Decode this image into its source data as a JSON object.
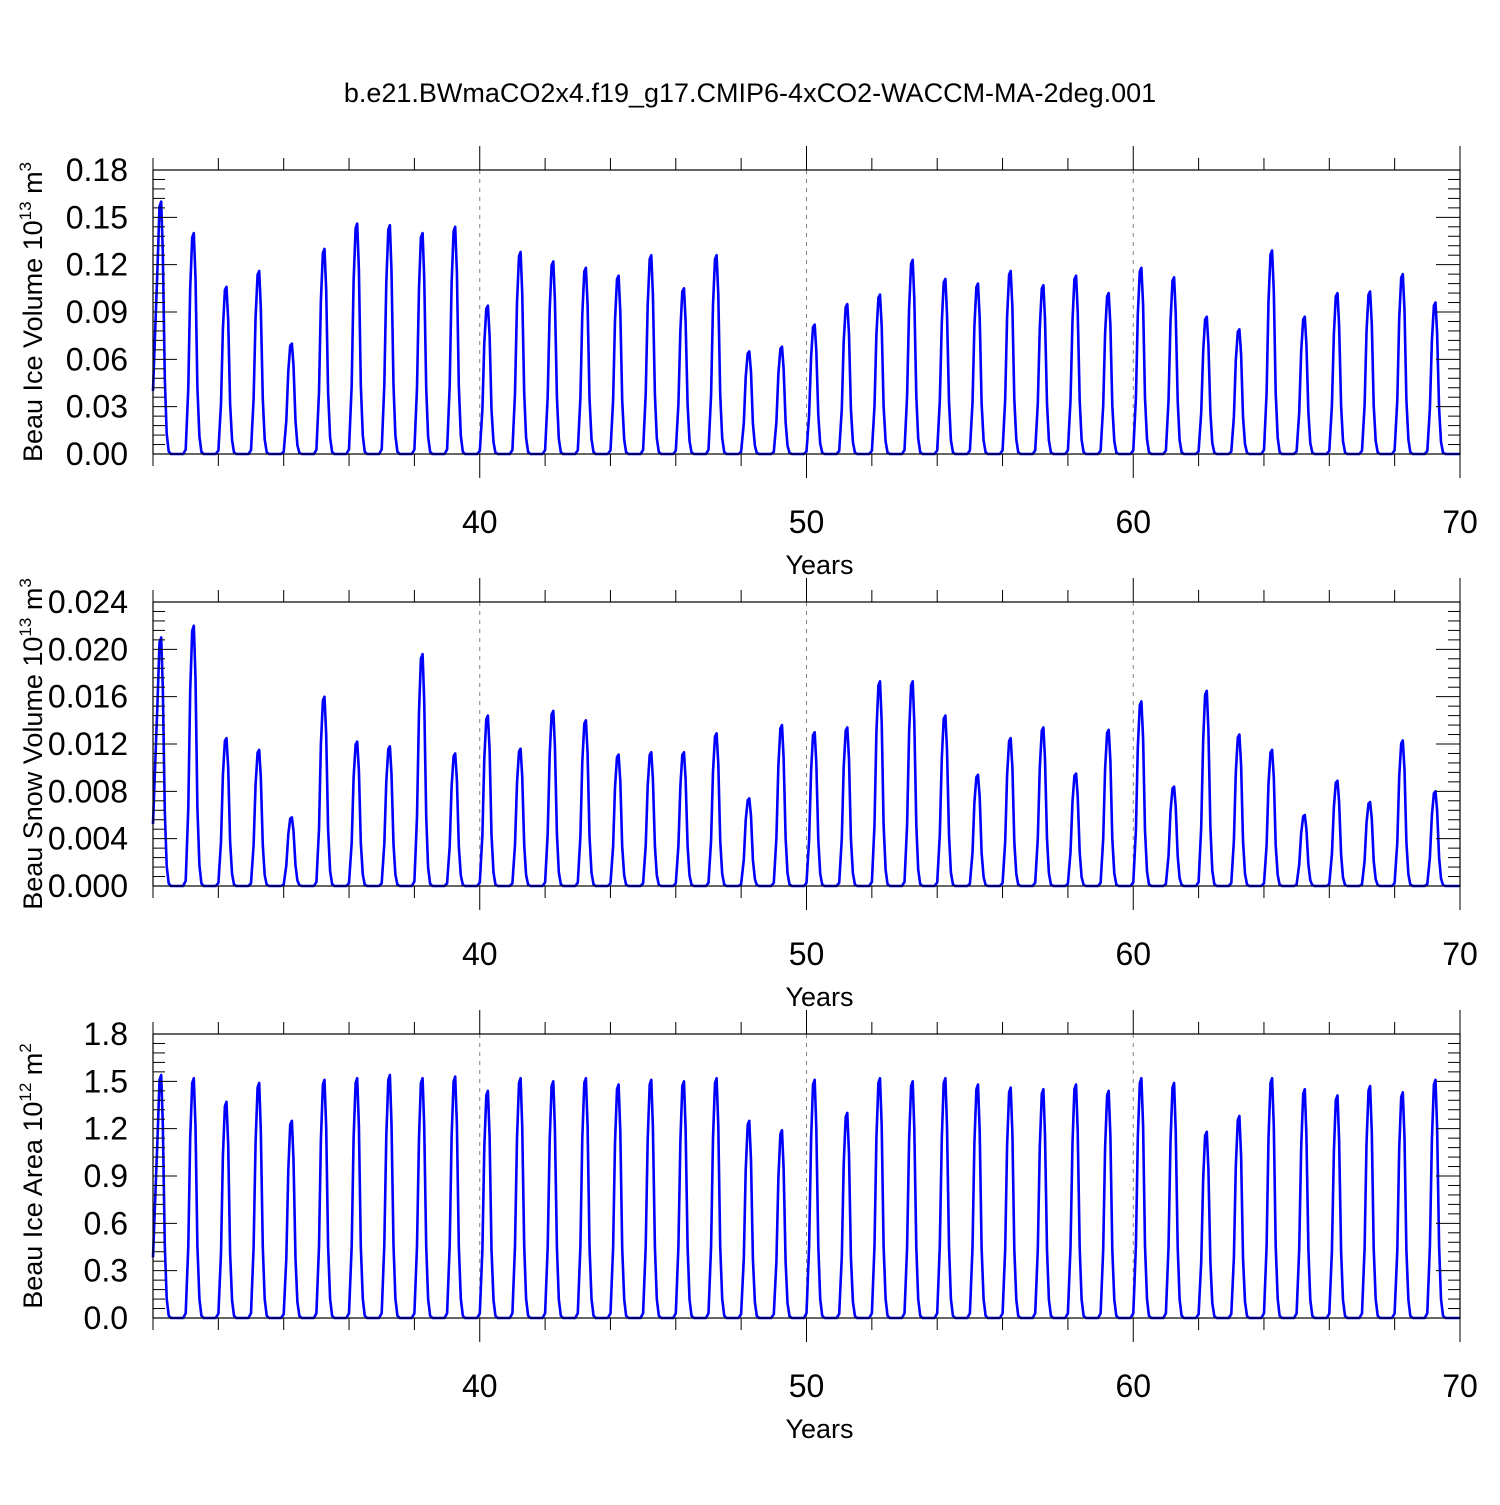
{
  "title": "b.e21.BWmaCO2x4.f19_g17.CMIP6-4xCO2-WACCM-MA-2deg.001",
  "line_color": "#0000ff",
  "chart_data": [
    {
      "type": "line",
      "ylabel": "Beau Ice Volume 10",
      "ylabel_exp": "13",
      "ylabel_unit": " m",
      "ylabel_unit_exp": "3",
      "xlabel": "Years",
      "xlim": [
        30,
        70
      ],
      "ylim": [
        0,
        0.18
      ],
      "xticks": [
        40,
        50,
        60,
        70
      ],
      "xtick_labels": [
        "40",
        "50",
        "60",
        "70"
      ],
      "yticks": [
        0,
        0.03,
        0.06,
        0.09,
        0.12,
        0.15,
        0.18
      ],
      "ytick_labels": [
        "0.00",
        "0.03",
        "0.06",
        "0.09",
        "0.12",
        "0.15",
        "0.18"
      ],
      "grid": "dashed vertical at major x ticks",
      "series": [
        {
          "peak_years": [
            30.25,
            31.25,
            32.25,
            33.25,
            34.25,
            35.25,
            36.25,
            37.25,
            38.25,
            39.25,
            40.25,
            41.25,
            42.25,
            43.25,
            44.25,
            45.25,
            46.25,
            47.25,
            48.25,
            49.25,
            50.25,
            51.25,
            52.25,
            53.25,
            54.25,
            55.25,
            56.25,
            57.25,
            58.25,
            59.25,
            60.25,
            61.25,
            62.25,
            63.25,
            64.25,
            65.25,
            66.25,
            67.25,
            68.25,
            69.25
          ],
          "peaks": [
            0.16,
            0.14,
            0.106,
            0.116,
            0.07,
            0.13,
            0.146,
            0.145,
            0.14,
            0.144,
            0.094,
            0.128,
            0.122,
            0.118,
            0.113,
            0.126,
            0.105,
            0.126,
            0.065,
            0.068,
            0.082,
            0.095,
            0.101,
            0.123,
            0.111,
            0.108,
            0.116,
            0.107,
            0.113,
            0.102,
            0.118,
            0.112,
            0.087,
            0.079,
            0.129,
            0.087,
            0.102,
            0.103,
            0.114,
            0.096
          ],
          "minimum": 0.0
        }
      ]
    },
    {
      "type": "line",
      "ylabel": "Beau Snow Volume 10",
      "ylabel_exp": "13",
      "ylabel_unit": " m",
      "ylabel_unit_exp": "3",
      "xlabel": "Years",
      "xlim": [
        30,
        70
      ],
      "ylim": [
        0,
        0.024
      ],
      "xticks": [
        40,
        50,
        60,
        70
      ],
      "xtick_labels": [
        "40",
        "50",
        "60",
        "70"
      ],
      "yticks": [
        0,
        0.004,
        0.008,
        0.012,
        0.016,
        0.02,
        0.024
      ],
      "ytick_labels": [
        "0.000",
        "0.004",
        "0.008",
        "0.012",
        "0.016",
        "0.020",
        "0.024"
      ],
      "grid": "dashed vertical at major x ticks",
      "series": [
        {
          "peak_years": [
            30.25,
            31.25,
            32.25,
            33.25,
            34.25,
            35.25,
            36.25,
            37.25,
            38.25,
            39.25,
            40.25,
            41.25,
            42.25,
            43.25,
            44.25,
            45.25,
            46.25,
            47.25,
            48.25,
            49.25,
            50.25,
            51.25,
            52.25,
            53.25,
            54.25,
            55.25,
            56.25,
            57.25,
            58.25,
            59.25,
            60.25,
            61.25,
            62.25,
            63.25,
            64.25,
            65.25,
            66.25,
            67.25,
            68.25,
            69.25
          ],
          "peaks": [
            0.021,
            0.022,
            0.0125,
            0.0115,
            0.0058,
            0.016,
            0.0122,
            0.0118,
            0.0196,
            0.0112,
            0.0144,
            0.0116,
            0.0148,
            0.014,
            0.0111,
            0.0113,
            0.0113,
            0.0129,
            0.0074,
            0.0136,
            0.013,
            0.0134,
            0.0173,
            0.0173,
            0.0144,
            0.0094,
            0.0125,
            0.0134,
            0.0095,
            0.0132,
            0.0156,
            0.0084,
            0.0165,
            0.0128,
            0.0115,
            0.006,
            0.0089,
            0.0071,
            0.0123,
            0.008
          ],
          "minimum": 0.0
        }
      ]
    },
    {
      "type": "line",
      "ylabel": "Beau Ice Area 10",
      "ylabel_exp": "12",
      "ylabel_unit": " m",
      "ylabel_unit_exp": "2",
      "xlabel": "Years",
      "xlim": [
        30,
        70
      ],
      "ylim": [
        0,
        1.8
      ],
      "xticks": [
        40,
        50,
        60,
        70
      ],
      "xtick_labels": [
        "40",
        "50",
        "60",
        "70"
      ],
      "yticks": [
        0,
        0.3,
        0.6,
        0.9,
        1.2,
        1.5,
        1.8
      ],
      "ytick_labels": [
        "0.0",
        "0.3",
        "0.6",
        "0.9",
        "1.2",
        "1.5",
        "1.8"
      ],
      "grid": "dashed vertical at major x ticks",
      "series": [
        {
          "peak_years": [
            30.25,
            31.25,
            32.25,
            33.25,
            34.25,
            35.25,
            36.25,
            37.25,
            38.25,
            39.25,
            40.25,
            41.25,
            42.25,
            43.25,
            44.25,
            45.25,
            46.25,
            47.25,
            48.25,
            49.25,
            50.25,
            51.25,
            52.25,
            53.25,
            54.25,
            55.25,
            56.25,
            57.25,
            58.25,
            59.25,
            60.25,
            61.25,
            62.25,
            63.25,
            64.25,
            65.25,
            66.25,
            67.25,
            68.25,
            69.25
          ],
          "peaks": [
            1.54,
            1.52,
            1.37,
            1.49,
            1.25,
            1.51,
            1.52,
            1.54,
            1.52,
            1.53,
            1.44,
            1.52,
            1.5,
            1.52,
            1.48,
            1.51,
            1.5,
            1.52,
            1.25,
            1.19,
            1.51,
            1.3,
            1.52,
            1.5,
            1.52,
            1.48,
            1.46,
            1.45,
            1.48,
            1.44,
            1.52,
            1.49,
            1.18,
            1.28,
            1.52,
            1.45,
            1.41,
            1.47,
            1.43,
            1.51
          ],
          "minimum": 0.0
        }
      ]
    }
  ]
}
